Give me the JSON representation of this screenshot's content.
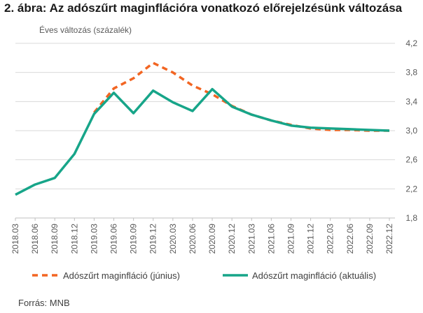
{
  "title": "2. ábra: Az adószűrt maginflációra vonatkozó előrejelzésünk változása",
  "source": "Forrás: MNB",
  "chart_data": {
    "type": "line",
    "title": "2. ábra: Az adószűrt maginflációra vonatkozó előrejelzésünk változása",
    "ylabel": "Éves változás (százalék)",
    "xlabel": "",
    "ylim": [
      1.8,
      4.2
    ],
    "yticks": [
      "1,8",
      "2,2",
      "2,6",
      "3,0",
      "3,4",
      "3,8",
      "4,2"
    ],
    "yaxis_position": "right",
    "grid": "horizontal",
    "legend_position": "bottom",
    "categories": [
      "2018.03",
      "2018.06",
      "2018.09",
      "2018.12",
      "2019.03",
      "2019.06",
      "2019.09",
      "2019.12",
      "2020.03",
      "2020.06",
      "2020.09",
      "2020.12",
      "2021.03",
      "2021.06",
      "2021.09",
      "2021.12",
      "2022.03",
      "2022.06",
      "2022.09",
      "2022.12"
    ],
    "series": [
      {
        "name": "Adószűrt maginfláció (június)",
        "color": "#f26522",
        "style": "dashed",
        "values": [
          null,
          null,
          null,
          null,
          3.25,
          3.58,
          3.72,
          3.93,
          3.8,
          3.62,
          3.5,
          3.34,
          3.22,
          3.14,
          3.08,
          3.03,
          3.01,
          3.01,
          3.0,
          3.0
        ]
      },
      {
        "name": "Adószűrt maginfláció (aktuális)",
        "color": "#17a589",
        "style": "solid",
        "values": [
          2.12,
          2.26,
          2.35,
          2.68,
          3.23,
          3.52,
          3.24,
          3.55,
          3.39,
          3.27,
          3.57,
          3.33,
          3.22,
          3.14,
          3.07,
          3.04,
          3.03,
          3.02,
          3.01,
          3.0
        ]
      }
    ]
  }
}
